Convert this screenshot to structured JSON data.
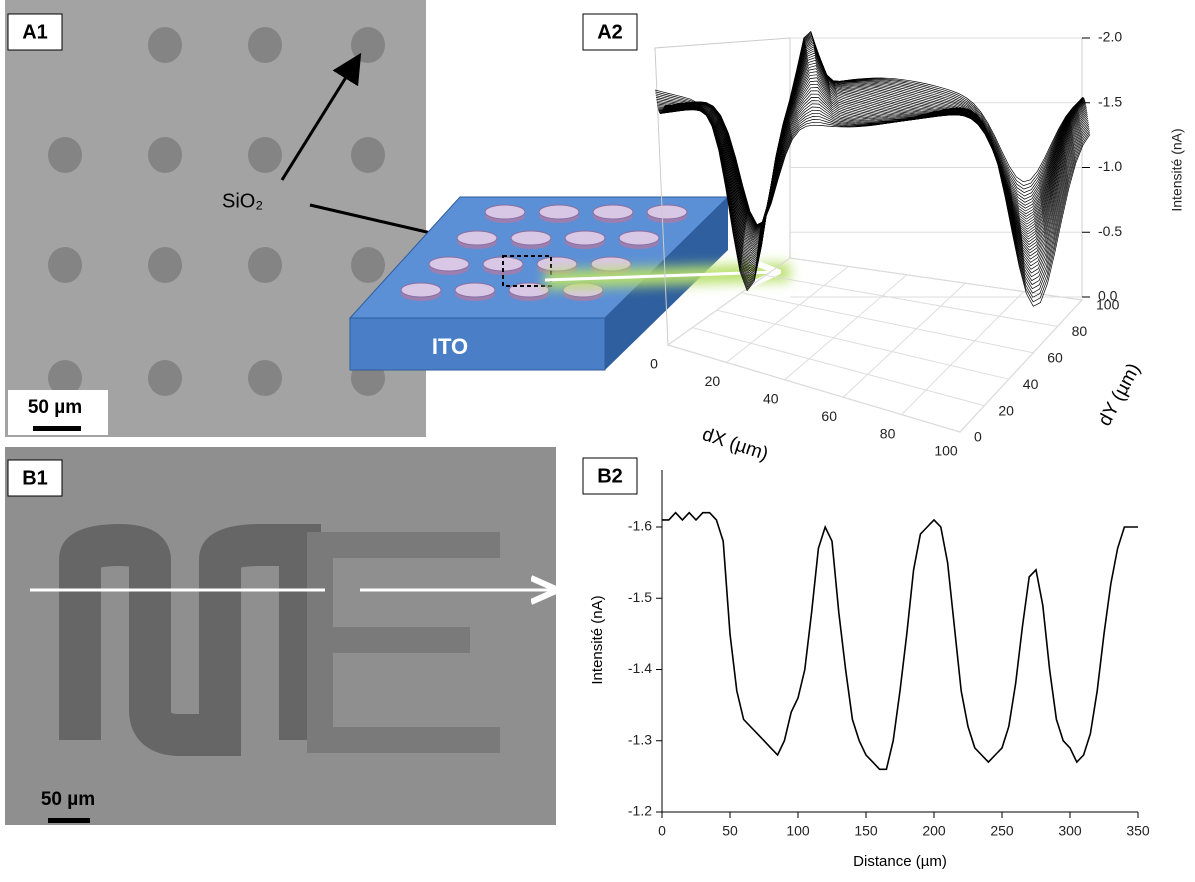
{
  "panels": {
    "a1": {
      "label": "A1",
      "scale_bar": "50 µm",
      "annotation": "SiO₂",
      "substrate": "ITO"
    },
    "a2": {
      "label": "A2",
      "z_label": "Intensité (nA)",
      "x_label": "dX (µm)",
      "y_label": "dY (µm)",
      "zticks": [
        {
          "value": -2,
          "label": "-2.0"
        },
        -1.5,
        {
          "value": -1,
          "label": "-1.0"
        },
        -0.5,
        {
          "value": 0,
          "label": "0.0"
        }
      ],
      "xticks": [
        0,
        20,
        40,
        60,
        80,
        100
      ],
      "yticks": [
        0,
        20,
        40,
        60,
        80,
        100
      ]
    },
    "b1": {
      "label": "B1",
      "scale_bar": "50 µm"
    },
    "b2": {
      "label": "B2"
    }
  },
  "chart_data": {
    "type": "line",
    "x_label": "Distance (µm)",
    "y_label": "Intensité (nA)",
    "color": "#000000",
    "x": [
      0,
      5,
      10,
      15,
      20,
      25,
      30,
      35,
      40,
      45,
      50,
      55,
      60,
      65,
      70,
      75,
      80,
      85,
      90,
      95,
      100,
      105,
      110,
      115,
      120,
      125,
      130,
      135,
      140,
      145,
      150,
      155,
      160,
      165,
      170,
      175,
      180,
      185,
      190,
      195,
      200,
      205,
      210,
      215,
      220,
      225,
      230,
      235,
      240,
      245,
      250,
      255,
      260,
      265,
      270,
      275,
      280,
      285,
      290,
      295,
      300,
      305,
      310,
      315,
      320,
      325,
      330,
      335,
      340,
      345,
      350
    ],
    "values": [
      -1.61,
      -1.61,
      -1.62,
      -1.61,
      -1.62,
      -1.61,
      -1.62,
      -1.62,
      -1.61,
      -1.58,
      -1.45,
      -1.37,
      -1.33,
      -1.32,
      -1.31,
      -1.3,
      -1.29,
      -1.28,
      -1.3,
      -1.34,
      -1.36,
      -1.4,
      -1.48,
      -1.57,
      -1.6,
      -1.58,
      -1.48,
      -1.4,
      -1.33,
      -1.3,
      -1.28,
      -1.27,
      -1.26,
      -1.26,
      -1.3,
      -1.37,
      -1.45,
      -1.54,
      -1.59,
      -1.6,
      -1.61,
      -1.6,
      -1.55,
      -1.46,
      -1.37,
      -1.32,
      -1.29,
      -1.28,
      -1.27,
      -1.28,
      -1.29,
      -1.32,
      -1.38,
      -1.46,
      -1.53,
      -1.54,
      -1.49,
      -1.4,
      -1.33,
      -1.3,
      -1.29,
      -1.27,
      -1.28,
      -1.31,
      -1.37,
      -1.45,
      -1.52,
      -1.57,
      -1.6,
      -1.6,
      -1.6
    ],
    "xlim": [
      0,
      350
    ],
    "ylim": [
      -1.2,
      -1.68
    ],
    "xticks": [
      0,
      50,
      100,
      150,
      200,
      250,
      300,
      350
    ],
    "yticks": [
      -1.2,
      -1.3,
      -1.4,
      -1.5,
      -1.6
    ]
  }
}
